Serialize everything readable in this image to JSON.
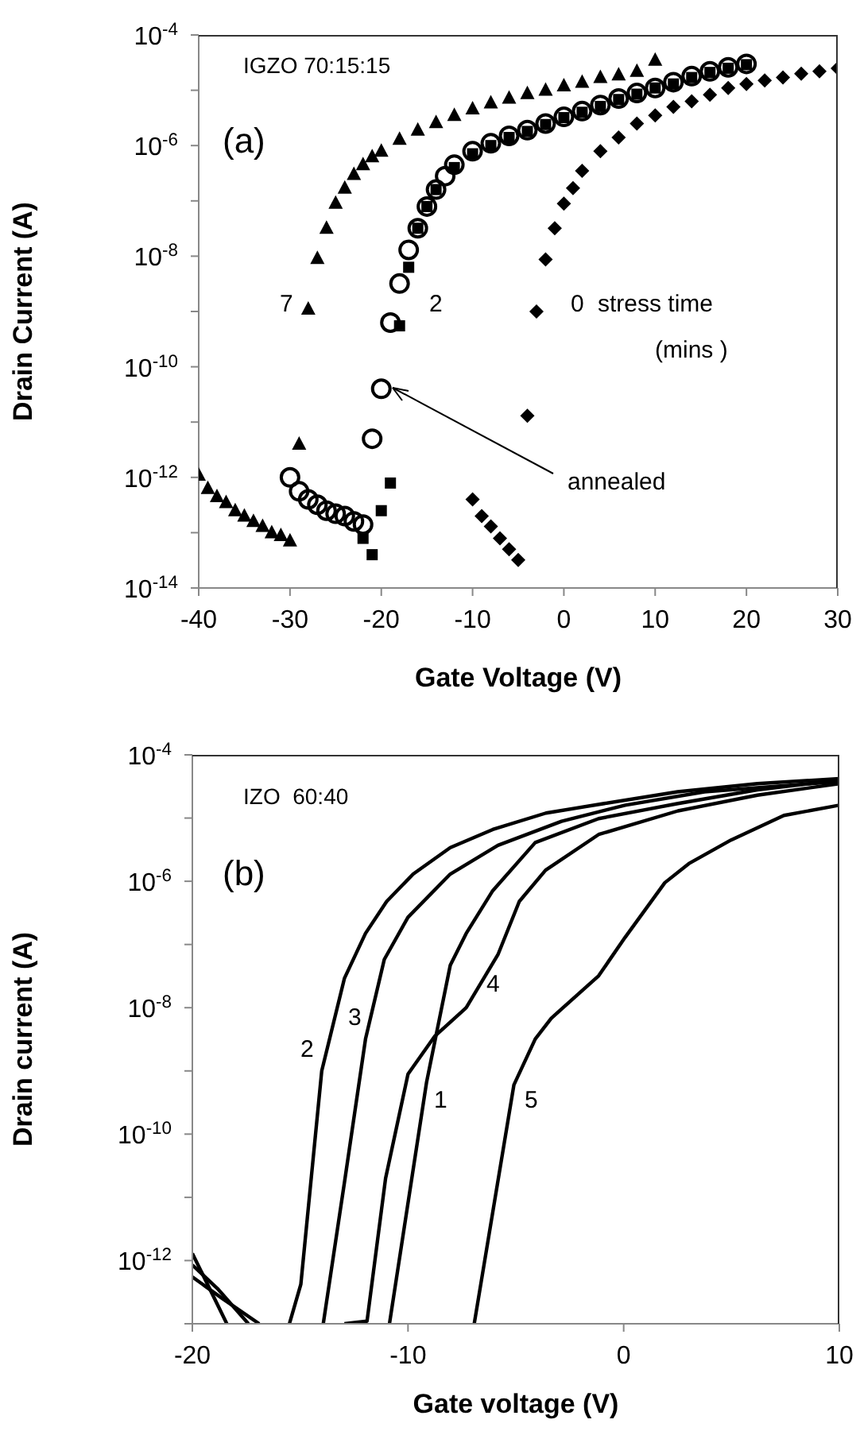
{
  "chart_data": [
    {
      "type": "scatter",
      "xlabel": "Gate Voltage (V)",
      "ylabel": "Drain Current (A)",
      "log": "y",
      "xlim": [
        -40,
        30
      ],
      "xticks": [
        -40,
        -30,
        -20,
        -10,
        0,
        10,
        20,
        30
      ],
      "ylim": [
        1e-14,
        0.0001
      ],
      "yticks": [
        {
          "value": 1e-14,
          "label": "10$^{-14}$"
        },
        {
          "value": 1e-13,
          "label": null
        },
        {
          "value": 1e-12,
          "label": "10$^{-12}$"
        },
        {
          "value": 1e-11,
          "label": null
        },
        {
          "value": 1e-10,
          "label": "10$^{-10}$"
        },
        {
          "value": 1e-09,
          "label": null
        },
        {
          "value": 1e-08,
          "label": "10$^{-8}$"
        },
        {
          "value": 1e-07,
          "label": null
        },
        {
          "value": 1e-06,
          "label": "10$^{-6}$"
        },
        {
          "value": 1e-05,
          "label": null
        },
        {
          "value": 0.0001,
          "label": "10$^{-4}$"
        }
      ],
      "annotations": [
        "IGZO 70:15:15",
        "(a)",
        "stress time",
        "(mins )"
      ],
      "series": [
        {
          "name": "7",
          "color": "#000000",
          "marker": "triangle",
          "x": [
            -40,
            -39,
            -38,
            -37,
            -36,
            -35,
            -34,
            -33,
            -32,
            -31,
            -30,
            -29,
            -28,
            -27,
            -26,
            -25,
            -24,
            -23,
            -22,
            -21,
            -20,
            -18,
            -16,
            -14,
            -12,
            -10,
            -8,
            -6,
            -4,
            -2,
            0,
            2,
            4,
            6,
            8,
            10
          ],
          "values": [
            1.1e-12,
            6.3e-13,
            4.5e-13,
            3.5e-13,
            2.5e-13,
            2e-13,
            1.6e-13,
            1.3e-13,
            1e-13,
            8.9e-14,
            7.1e-14,
            4e-12,
            1.1e-09,
            9.1e-09,
            3.2e-08,
            9.1e-08,
            1.7e-07,
            3e-07,
            4.5e-07,
            6.3e-07,
            7.9e-07,
            1.3e-06,
            1.9e-06,
            2.6e-06,
            3.5e-06,
            4.6e-06,
            5.9e-06,
            7.2e-06,
            8.7e-06,
            1e-05,
            1.2e-05,
            1.4e-05,
            1.7e-05,
            1.9e-05,
            2.2e-05,
            3.5e-05
          ]
        },
        {
          "name": "2",
          "color": "#000000",
          "marker": "square",
          "x": [
            -22,
            -21,
            -20,
            -19,
            -18,
            -17,
            -16,
            -15,
            -14,
            -12,
            -10,
            -8,
            -6,
            -4,
            -2,
            0,
            2,
            4,
            6,
            8,
            10,
            12,
            14,
            16,
            18,
            20
          ],
          "values": [
            7.9e-14,
            4e-14,
            2.5e-13,
            7.9e-13,
            5.5e-10,
            6.3e-09,
            3.2e-08,
            7.9e-08,
            1.6e-07,
            4e-07,
            7.1e-07,
            1e-06,
            1.4e-06,
            1.8e-06,
            2.4e-06,
            3.2e-06,
            4e-06,
            5.1e-06,
            6.8e-06,
            8.5e-06,
            1.1e-05,
            1.3e-05,
            1.7e-05,
            2.1e-05,
            2.5e-05,
            2.9e-05
          ]
        },
        {
          "name": "0",
          "color": "#000000",
          "marker": "diamond",
          "x": [
            -10,
            -9,
            -8,
            -7,
            -6,
            -5,
            -4,
            -3,
            -2,
            -1,
            0,
            1,
            2,
            4,
            6,
            8,
            10,
            12,
            14,
            16,
            18,
            20,
            22,
            24,
            26,
            28,
            30
          ],
          "values": [
            4e-13,
            2e-13,
            1.3e-13,
            7.9e-14,
            5e-14,
            3.2e-14,
            1.3e-11,
            1e-09,
            8.7e-09,
            3.2e-08,
            8.9e-08,
            1.7e-07,
            3.5e-07,
            7.9e-07,
            1.4e-06,
            2.5e-06,
            3.5e-06,
            5e-06,
            6.3e-06,
            8.3e-06,
            1.1e-05,
            1.3e-05,
            1.5e-05,
            1.7e-05,
            2e-05,
            2.2e-05,
            2.5e-05
          ]
        },
        {
          "name": "annealed",
          "color": "#000000",
          "marker": "circle",
          "x": [
            -30,
            -29,
            -28,
            -27,
            -26,
            -25,
            -24,
            -23,
            -22,
            -21,
            -20,
            -19,
            -18,
            -17,
            -16,
            -15,
            -14,
            -13,
            -12,
            -10,
            -8,
            -6,
            -4,
            -2,
            0,
            2,
            4,
            6,
            8,
            10,
            12,
            14,
            16,
            18,
            20
          ],
          "values": [
            1e-12,
            5.6e-13,
            4e-13,
            3.2e-13,
            2.5e-13,
            2.2e-13,
            2e-13,
            1.6e-13,
            1.4e-13,
            5e-12,
            4e-11,
            6.3e-10,
            3.2e-09,
            1.3e-08,
            3.2e-08,
            7.9e-08,
            1.6e-07,
            2.8e-07,
            4.5e-07,
            7.9e-07,
            1.1e-06,
            1.5e-06,
            1.9e-06,
            2.5e-06,
            3.3e-06,
            4.2e-06,
            5.4e-06,
            7.1e-06,
            8.9e-06,
            1.1e-05,
            1.4e-05,
            1.8e-05,
            2.2e-05,
            2.6e-05,
            3e-05
          ]
        }
      ]
    },
    {
      "type": "line",
      "xlabel": "Gate voltage (V)",
      "ylabel": "Drain current (A)",
      "log": "y",
      "xlim": [
        -20,
        10
      ],
      "xticks": [
        -20,
        -10,
        0,
        10
      ],
      "ylim": [
        1e-13,
        0.0001
      ],
      "yticks": [
        {
          "value": 1e-13,
          "label": null
        },
        {
          "value": 1e-12,
          "label": "10$^{-12}$"
        },
        {
          "value": 1e-11,
          "label": null
        },
        {
          "value": 1e-10,
          "label": "10$^{-10}$"
        },
        {
          "value": 1e-09,
          "label": null
        },
        {
          "value": 1e-08,
          "label": "10$^{-8}$"
        },
        {
          "value": 1e-07,
          "label": null
        },
        {
          "value": 1e-06,
          "label": "10$^{-6}$"
        },
        {
          "value": 1e-05,
          "label": null
        },
        {
          "value": 0.0001,
          "label": "10$^{-4}$"
        }
      ],
      "annotations": [
        "IZO  60:40",
        "(b)"
      ],
      "series": [
        {
          "name": "1",
          "color": "#000000",
          "x": [
            -20,
            -18.6,
            -16.9,
            -14,
            -10.86,
            -9.14,
            -8.04,
            -7.3,
            -6.07,
            -4.1,
            -1.16,
            2.52,
            6.2,
            10
          ],
          "values": [
            5.5e-13,
            2.5e-13,
            1e-13,
            null,
            1e-13,
            6.6e-10,
            4.7e-08,
            1.5e-07,
            7.1e-07,
            4.1e-06,
            9.8e-06,
            1.7e-05,
            2.8e-05,
            4e-05
          ]
        },
        {
          "name": "2",
          "color": "#000000",
          "x": [
            -20,
            -18.4,
            -17,
            -15.5,
            -14.97,
            -14,
            -12.95,
            -11.97,
            -10.99,
            -9.76,
            -8.04,
            -6.07,
            -3.6,
            -0.9,
            2.5,
            6.2,
            10
          ],
          "values": [
            1.3e-12,
            1e-13,
            null,
            1e-13,
            4.2e-13,
            1e-09,
            2.9e-08,
            1.5e-07,
            4.8e-07,
            1.3e-06,
            3.4e-06,
            6.6e-06,
            1.2e-05,
            1.7e-05,
            2.6e-05,
            3.5e-05,
            4.2e-05
          ]
        },
        {
          "name": "3",
          "color": "#000000",
          "x": [
            -20,
            -18.8,
            -17.4,
            -16,
            -13.93,
            -12.95,
            -11.97,
            -11.1,
            -10,
            -8.04,
            -5.83,
            -2.88,
            0.07,
            3.75,
            10
          ],
          "values": [
            8.5e-13,
            3.5e-13,
            1e-13,
            null,
            1e-13,
            1.7e-11,
            3.2e-09,
            5.8e-08,
            2.7e-07,
            1.3e-06,
            3.7e-06,
            8.9e-06,
            1.6e-05,
            2.6e-05,
            3.8e-05
          ]
        },
        {
          "name": "4",
          "color": "#000000",
          "x": [
            -12.95,
            -11.9,
            -11.04,
            -10,
            -8.77,
            -7.3,
            -5.83,
            -4.84,
            -3.62,
            -1.16,
            2.52,
            6.2,
            10
          ],
          "values": [
            1e-13,
            1.1e-13,
            2e-11,
            8.9e-10,
            3.5e-09,
            1e-08,
            6.9e-08,
            4.8e-07,
            1.5e-06,
            5.5e-06,
            1.3e-05,
            2.3e-05,
            3.5e-05
          ]
        },
        {
          "name": "5",
          "color": "#000000",
          "x": [
            -6.93,
            -5.09,
            -4.1,
            -3.36,
            -1.16,
            0.07,
            1.91,
            3.02,
            4.98,
            7.43,
            10
          ],
          "values": [
            1e-13,
            6e-10,
            3.2e-09,
            6.8e-09,
            3.2e-08,
            1.3e-07,
            9.5e-07,
            1.9e-06,
            4.5e-06,
            1.1e-05,
            1.6e-05
          ]
        }
      ]
    }
  ]
}
